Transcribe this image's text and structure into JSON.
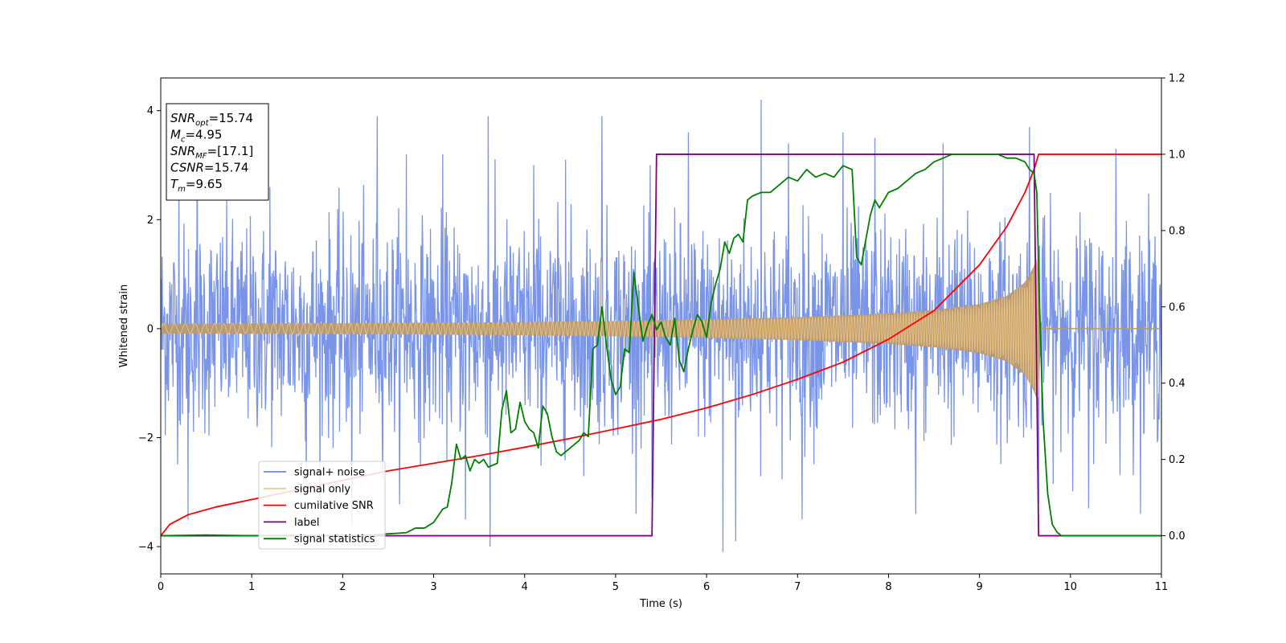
{
  "chart_data": {
    "type": "line",
    "xlabel": "Time (s)",
    "ylabel": "Whitened strain",
    "xlim": [
      0,
      11
    ],
    "ylim_left": [
      -4.5,
      4.6
    ],
    "ylim_right": [
      -0.1,
      1.2
    ],
    "x_ticks": [
      "0",
      "1",
      "2",
      "3",
      "4",
      "5",
      "6",
      "7",
      "8",
      "9",
      "10",
      "11"
    ],
    "y_ticks_left": [
      "−4",
      "−2",
      "0",
      "2",
      "4"
    ],
    "y_ticks_right": [
      "0.0",
      "0.2",
      "0.4",
      "0.6",
      "0.8",
      "1.0",
      "1.2"
    ],
    "grid": false,
    "legend_position": "lower-left",
    "info_box": {
      "lines": [
        {
          "var": "SNR",
          "sub": "opt",
          "value": "=15.74"
        },
        {
          "var": "M",
          "sub": "c",
          "value": "=4.95"
        },
        {
          "var": "SNR",
          "sub": "MF",
          "value": "=[17.1]"
        },
        {
          "var": "CSNR",
          "sub": "",
          "value": "=15.74"
        },
        {
          "var": "T",
          "sub": "m",
          "value": "=9.65"
        }
      ]
    },
    "series": [
      {
        "name": "signal+ noise",
        "axis": "left",
        "color": "#6b8ae6",
        "kind": "noise",
        "sigma": 1.0,
        "spikes": [
          {
            "x": 0.2,
            "y": 2.9
          },
          {
            "x": 0.3,
            "y": -3.5
          },
          {
            "x": 0.4,
            "y": 3.8
          },
          {
            "x": 1.2,
            "y": 2.6
          },
          {
            "x": 1.6,
            "y": -3.0
          },
          {
            "x": 2.1,
            "y": -3.6
          },
          {
            "x": 2.38,
            "y": 3.9
          },
          {
            "x": 2.7,
            "y": 3.2
          },
          {
            "x": 3.1,
            "y": 3.2
          },
          {
            "x": 3.35,
            "y": -3.5
          },
          {
            "x": 3.6,
            "y": 3.9
          },
          {
            "x": 3.62,
            "y": -4.0
          },
          {
            "x": 4.1,
            "y": 3.0
          },
          {
            "x": 4.45,
            "y": 3.1
          },
          {
            "x": 4.85,
            "y": 3.9
          },
          {
            "x": 5.4,
            "y": -3.1
          },
          {
            "x": 5.8,
            "y": 3.6
          },
          {
            "x": 6.18,
            "y": -4.1
          },
          {
            "x": 6.32,
            "y": -3.9
          },
          {
            "x": 6.6,
            "y": 4.2
          },
          {
            "x": 6.9,
            "y": 3.4
          },
          {
            "x": 7.05,
            "y": -3.5
          },
          {
            "x": 7.5,
            "y": 3.6
          },
          {
            "x": 7.85,
            "y": 3.5
          },
          {
            "x": 8.3,
            "y": -3.4
          },
          {
            "x": 8.6,
            "y": 3.4
          },
          {
            "x": 9.55,
            "y": 3.7
          },
          {
            "x": 9.65,
            "y": -3.2
          },
          {
            "x": 10.2,
            "y": -3.3
          },
          {
            "x": 10.5,
            "y": 3.3
          }
        ]
      },
      {
        "name": "signal only",
        "axis": "left",
        "color": "#f5c77e",
        "fill": "#b89a72",
        "kind": "chirp",
        "amplitude": [
          [
            0.0,
            0.09
          ],
          [
            2.0,
            0.1
          ],
          [
            4.0,
            0.12
          ],
          [
            5.0,
            0.14
          ],
          [
            6.0,
            0.17
          ],
          [
            7.0,
            0.21
          ],
          [
            8.0,
            0.28
          ],
          [
            8.5,
            0.34
          ],
          [
            9.0,
            0.45
          ],
          [
            9.3,
            0.6
          ],
          [
            9.5,
            0.85
          ],
          [
            9.6,
            1.15
          ],
          [
            9.65,
            1.4
          ],
          [
            9.66,
            0.0
          ],
          [
            11.0,
            0.0
          ]
        ]
      },
      {
        "name": "cumilative SNR",
        "axis": "right",
        "color": "#ff0000",
        "points": [
          [
            0.0,
            0.0
          ],
          [
            0.1,
            0.03
          ],
          [
            0.3,
            0.055
          ],
          [
            0.6,
            0.075
          ],
          [
            1.0,
            0.095
          ],
          [
            1.5,
            0.12
          ],
          [
            2.0,
            0.145
          ],
          [
            2.5,
            0.17
          ],
          [
            3.0,
            0.19
          ],
          [
            3.5,
            0.21
          ],
          [
            4.0,
            0.232
          ],
          [
            4.5,
            0.255
          ],
          [
            5.0,
            0.28
          ],
          [
            5.5,
            0.305
          ],
          [
            6.0,
            0.335
          ],
          [
            6.5,
            0.37
          ],
          [
            7.0,
            0.41
          ],
          [
            7.5,
            0.455
          ],
          [
            8.0,
            0.515
          ],
          [
            8.5,
            0.59
          ],
          [
            9.0,
            0.71
          ],
          [
            9.3,
            0.81
          ],
          [
            9.5,
            0.9
          ],
          [
            9.6,
            0.96
          ],
          [
            9.65,
            1.0
          ],
          [
            11.0,
            1.0
          ]
        ]
      },
      {
        "name": "label",
        "axis": "right",
        "color": "#800080",
        "points": [
          [
            0.0,
            0.0
          ],
          [
            5.4,
            0.0
          ],
          [
            5.45,
            1.0
          ],
          [
            9.6,
            1.0
          ],
          [
            9.65,
            0.0
          ],
          [
            11.0,
            0.0
          ]
        ]
      },
      {
        "name": "signal statistics",
        "axis": "right",
        "color": "#008000",
        "points": [
          [
            0.0,
            0.0
          ],
          [
            0.5,
            0.002
          ],
          [
            1.0,
            0.0
          ],
          [
            1.5,
            0.001
          ],
          [
            2.0,
            0.0
          ],
          [
            2.3,
            0.002
          ],
          [
            2.5,
            0.005
          ],
          [
            2.7,
            0.008
          ],
          [
            2.8,
            0.02
          ],
          [
            2.9,
            0.02
          ],
          [
            3.0,
            0.035
          ],
          [
            3.1,
            0.07
          ],
          [
            3.15,
            0.075
          ],
          [
            3.2,
            0.14
          ],
          [
            3.25,
            0.24
          ],
          [
            3.3,
            0.2
          ],
          [
            3.35,
            0.21
          ],
          [
            3.4,
            0.17
          ],
          [
            3.45,
            0.2
          ],
          [
            3.5,
            0.19
          ],
          [
            3.55,
            0.2
          ],
          [
            3.6,
            0.18
          ],
          [
            3.7,
            0.19
          ],
          [
            3.75,
            0.33
          ],
          [
            3.8,
            0.38
          ],
          [
            3.85,
            0.27
          ],
          [
            3.9,
            0.28
          ],
          [
            3.95,
            0.35
          ],
          [
            4.0,
            0.3
          ],
          [
            4.05,
            0.28
          ],
          [
            4.1,
            0.27
          ],
          [
            4.15,
            0.23
          ],
          [
            4.2,
            0.34
          ],
          [
            4.25,
            0.32
          ],
          [
            4.3,
            0.26
          ],
          [
            4.35,
            0.22
          ],
          [
            4.4,
            0.21
          ],
          [
            4.5,
            0.23
          ],
          [
            4.6,
            0.25
          ],
          [
            4.65,
            0.27
          ],
          [
            4.7,
            0.26
          ],
          [
            4.75,
            0.49
          ],
          [
            4.8,
            0.5
          ],
          [
            4.85,
            0.6
          ],
          [
            4.9,
            0.5
          ],
          [
            4.95,
            0.41
          ],
          [
            5.0,
            0.37
          ],
          [
            5.05,
            0.39
          ],
          [
            5.1,
            0.49
          ],
          [
            5.15,
            0.48
          ],
          [
            5.2,
            0.69
          ],
          [
            5.25,
            0.6
          ],
          [
            5.3,
            0.51
          ],
          [
            5.35,
            0.55
          ],
          [
            5.4,
            0.58
          ],
          [
            5.45,
            0.54
          ],
          [
            5.5,
            0.56
          ],
          [
            5.55,
            0.52
          ],
          [
            5.6,
            0.5
          ],
          [
            5.65,
            0.57
          ],
          [
            5.7,
            0.46
          ],
          [
            5.75,
            0.43
          ],
          [
            5.8,
            0.49
          ],
          [
            5.85,
            0.54
          ],
          [
            5.9,
            0.58
          ],
          [
            5.95,
            0.56
          ],
          [
            6.0,
            0.52
          ],
          [
            6.05,
            0.61
          ],
          [
            6.1,
            0.66
          ],
          [
            6.15,
            0.7
          ],
          [
            6.2,
            0.77
          ],
          [
            6.25,
            0.74
          ],
          [
            6.3,
            0.78
          ],
          [
            6.35,
            0.79
          ],
          [
            6.4,
            0.77
          ],
          [
            6.45,
            0.88
          ],
          [
            6.5,
            0.89
          ],
          [
            6.6,
            0.9
          ],
          [
            6.7,
            0.9
          ],
          [
            6.8,
            0.92
          ],
          [
            6.9,
            0.94
          ],
          [
            7.0,
            0.93
          ],
          [
            7.1,
            0.96
          ],
          [
            7.2,
            0.94
          ],
          [
            7.3,
            0.95
          ],
          [
            7.4,
            0.94
          ],
          [
            7.5,
            0.97
          ],
          [
            7.6,
            0.96
          ],
          [
            7.65,
            0.73
          ],
          [
            7.7,
            0.71
          ],
          [
            7.8,
            0.84
          ],
          [
            7.85,
            0.88
          ],
          [
            7.9,
            0.86
          ],
          [
            8.0,
            0.9
          ],
          [
            8.1,
            0.91
          ],
          [
            8.2,
            0.93
          ],
          [
            8.3,
            0.95
          ],
          [
            8.4,
            0.96
          ],
          [
            8.5,
            0.98
          ],
          [
            8.6,
            0.99
          ],
          [
            8.7,
            1.0
          ],
          [
            8.8,
            1.0
          ],
          [
            9.0,
            1.0
          ],
          [
            9.2,
            1.0
          ],
          [
            9.3,
            0.99
          ],
          [
            9.4,
            0.99
          ],
          [
            9.5,
            0.98
          ],
          [
            9.55,
            0.96
          ],
          [
            9.6,
            0.95
          ],
          [
            9.63,
            0.9
          ],
          [
            9.66,
            0.6
          ],
          [
            9.7,
            0.3
          ],
          [
            9.75,
            0.11
          ],
          [
            9.8,
            0.03
          ],
          [
            9.85,
            0.01
          ],
          [
            9.9,
            0.0
          ],
          [
            10.5,
            0.0
          ],
          [
            11.0,
            0.0
          ]
        ]
      }
    ]
  }
}
